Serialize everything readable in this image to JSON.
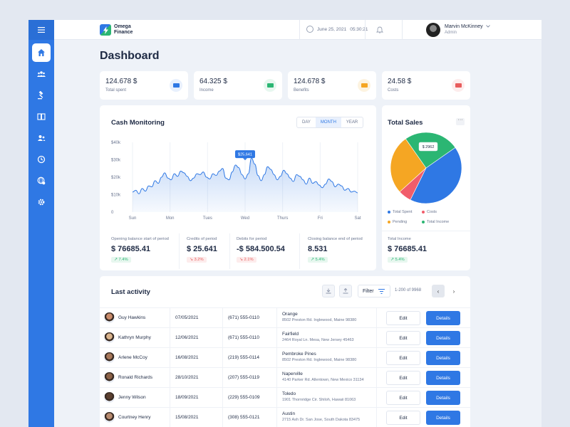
{
  "brand": {
    "name_line1": "Omega",
    "name_line2": "Finance"
  },
  "header": {
    "date": "June 25, 2021",
    "time": "05:30:21",
    "user_name": "Marvin McKinney",
    "user_role": "Admin"
  },
  "page_title": "Dashboard",
  "sidebar": {
    "items": [
      {
        "icon": "home-icon"
      },
      {
        "icon": "users-icon"
      },
      {
        "icon": "gavel-icon"
      },
      {
        "icon": "book-icon"
      },
      {
        "icon": "user-group-icon"
      },
      {
        "icon": "clock-icon"
      },
      {
        "icon": "globe-icon"
      },
      {
        "icon": "settings-icon"
      }
    ]
  },
  "stats": [
    {
      "value": "124.678 $",
      "label": "Total spent",
      "color": "#2f78e4",
      "bg": "#e8f0fd"
    },
    {
      "value": "64.325 $",
      "label": "Income",
      "color": "#2bb673",
      "bg": "#e7f7ef"
    },
    {
      "value": "124.678 $",
      "label": "Benefits",
      "color": "#f5a623",
      "bg": "#fdf3e0"
    },
    {
      "value": "24.58 $",
      "label": "Costs",
      "color": "#e85c5c",
      "bg": "#fdecec"
    }
  ],
  "cash": {
    "title": "Cash Monitoring",
    "tabs": [
      "DAY",
      "MONTH",
      "YEAR"
    ],
    "active_tab": "MONTH",
    "tooltip": "$25,641",
    "summary": [
      {
        "label": "Opening balance start of period",
        "value": "$ 76685.41",
        "trend": "7.4%",
        "dir": "up"
      },
      {
        "label": "Credits of period",
        "value": "$ 25.641",
        "trend": "3.2%",
        "dir": "down"
      },
      {
        "label": "Debits for period",
        "value": "-$ 584.500.54",
        "trend": "2.1%",
        "dir": "down"
      },
      {
        "label": "Closing balance end of period",
        "value": "8.531",
        "trend": "5.4%",
        "dir": "up"
      }
    ]
  },
  "chart_data": {
    "type": "area",
    "x_ticks": [
      "Sun",
      "Mon",
      "Tues",
      "Wed",
      "Thurs",
      "Fri",
      "Sat"
    ],
    "y_ticks": [
      "$40k",
      "$30k",
      "$20k",
      "$10k",
      "0"
    ],
    "ylim": [
      0,
      40000
    ],
    "series": [
      {
        "values": [
          11500,
          12500,
          10500,
          13500,
          12000,
          15000,
          14500,
          18000,
          16500,
          20000,
          22500,
          19500,
          18500,
          22000,
          20500,
          23500,
          22500,
          20500,
          18000,
          19500,
          22000,
          21500,
          23000,
          20000,
          19000,
          22000,
          21000,
          23500,
          25000,
          19500,
          18500,
          23000,
          27000,
          25500,
          21500,
          19000,
          22000,
          31000,
          27500,
          21000,
          18000,
          21500,
          26000,
          24500,
          21500,
          18500,
          20500,
          24000,
          22000,
          19500,
          17500,
          21500,
          20500,
          18500,
          16000,
          19500,
          16500,
          17500,
          15500,
          14000,
          16000,
          19000,
          17500,
          14500,
          16000,
          15000,
          12500,
          13500,
          11500,
          12000,
          11000
        ]
      }
    ],
    "highlight": {
      "x": "Wed",
      "value": 25641
    }
  },
  "sales": {
    "title": "Total Sales",
    "badge": "$ 2962",
    "legend": [
      {
        "label": "Total Spent",
        "color": "#2f78e4"
      },
      {
        "label": "Costs",
        "color": "#f15d6b"
      },
      {
        "label": "Pending",
        "color": "#f5a623"
      },
      {
        "label": "Total Income",
        "color": "#2bb673"
      }
    ],
    "pie": [
      {
        "label": "Total Spent",
        "value": 42,
        "color": "#2f78e4"
      },
      {
        "label": "Costs",
        "value": 6,
        "color": "#f15d6b"
      },
      {
        "label": "Pending",
        "value": 27,
        "color": "#f5a623"
      },
      {
        "label": "Total Income",
        "value": 25,
        "color": "#2bb673"
      }
    ],
    "income_label": "Total Income",
    "income_value": "$ 76685.41",
    "trend": "5.4%"
  },
  "activity": {
    "title": "Last activity",
    "filter_label": "Filter",
    "range": "1-200 of 9968",
    "rows": [
      {
        "name": "Guy Hawkins",
        "date": "07/05/2021",
        "phone": "(671) 555-0110",
        "city": "Orange",
        "address": "8502 Preston Rd. Inglewood, Maine 98380",
        "edit": "Edit",
        "details": "Details"
      },
      {
        "name": "Kathryn Murphy",
        "date": "12/06/2021",
        "phone": "(671) 555-0110",
        "city": "Fairfield",
        "address": "2464 Royal Ln. Mesa, New Jersey 45463",
        "edit": "Edit",
        "details": "Details"
      },
      {
        "name": "Arlene McCoy",
        "date": "16/08/2021",
        "phone": "(219) 555-0114",
        "city": "Pembroke Pines",
        "address": "8502 Preston Rd. Inglewood, Maine 98380",
        "edit": "Edit",
        "details": "Details"
      },
      {
        "name": "Ronald Richards",
        "date": "28/10/2021",
        "phone": "(207) 555-0119",
        "city": "Naperville",
        "address": "4140 Parker Rd. Allentown, New Mexico 31134",
        "edit": "Edit",
        "details": "Details"
      },
      {
        "name": "Jenny Wilson",
        "date": "18/09/2021",
        "phone": "(229) 555-0109",
        "city": "Toledo",
        "address": "1901 Thornridge Cir. Shiloh, Hawaii 81063",
        "edit": "Edit",
        "details": "Details"
      },
      {
        "name": "Courtney Henry",
        "date": "15/08/2021",
        "phone": "(308) 555-0121",
        "city": "Austin",
        "address": "2715 Ash Dr. San Jose, South Dakota 83475",
        "edit": "Edit",
        "details": "Details"
      }
    ]
  }
}
